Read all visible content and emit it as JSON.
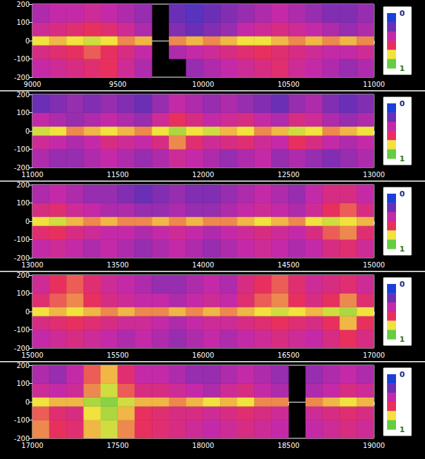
{
  "chart_data": [
    {
      "type": "heatmap",
      "xlim": [
        9000,
        11000
      ],
      "xticks": [
        9000,
        9500,
        10000,
        10500,
        11000
      ],
      "ylim": [
        -200,
        200
      ],
      "yticks": [
        -200,
        -100,
        0,
        100,
        200
      ],
      "x_edges": [
        9000,
        9100,
        9200,
        9300,
        9400,
        9500,
        9600,
        9700,
        9800,
        9900,
        10000,
        10100,
        10200,
        10300,
        10400,
        10500,
        10600,
        10700,
        10800,
        10900,
        11000
      ],
      "y_edges": [
        -200,
        -100,
        -25,
        25,
        100,
        200
      ],
      "cells": [
        [
          0.4,
          0.45,
          0.5,
          0.55,
          0.6,
          0.45,
          0.35,
          null,
          null,
          0.3,
          0.35,
          0.4,
          0.45,
          0.5,
          0.55,
          0.45,
          0.4,
          0.35,
          0.3,
          0.35
        ],
        [
          0.5,
          0.55,
          0.6,
          0.65,
          0.6,
          0.5,
          0.4,
          null,
          0.35,
          0.4,
          0.45,
          0.5,
          0.55,
          0.6,
          0.55,
          0.5,
          0.45,
          0.4,
          0.4,
          0.45
        ],
        [
          0.8,
          0.75,
          0.8,
          0.85,
          0.8,
          0.7,
          0.75,
          null,
          0.7,
          0.75,
          0.7,
          0.75,
          0.8,
          0.8,
          0.75,
          0.7,
          0.75,
          0.7,
          0.75,
          0.7
        ],
        [
          0.45,
          0.5,
          0.55,
          0.6,
          0.55,
          0.45,
          0.35,
          null,
          0.25,
          0.2,
          0.25,
          0.3,
          0.4,
          0.45,
          0.5,
          0.45,
          0.4,
          0.35,
          0.3,
          0.35
        ],
        [
          0.35,
          0.4,
          0.4,
          0.45,
          0.4,
          0.35,
          0.3,
          null,
          0.2,
          0.15,
          0.2,
          0.25,
          0.3,
          0.35,
          0.4,
          0.35,
          0.3,
          0.25,
          0.25,
          0.3
        ]
      ],
      "colorbar": {
        "range": [
          0,
          1
        ],
        "ticks": [
          0,
          1
        ],
        "colors": [
          "#1c3fd8",
          "#6a2fb5",
          "#c42aa8",
          "#e8305e",
          "#f2e23e",
          "#66cc44"
        ]
      }
    },
    {
      "type": "heatmap",
      "xlim": [
        11000,
        13000
      ],
      "xticks": [
        11000,
        11500,
        12000,
        12500,
        13000
      ],
      "ylim": [
        -200,
        200
      ],
      "yticks": [
        -200,
        -100,
        0,
        100,
        200
      ],
      "x_edges": [
        11000,
        11100,
        11200,
        11300,
        11400,
        11500,
        11600,
        11700,
        11800,
        11900,
        12000,
        12100,
        12200,
        12300,
        12400,
        12500,
        12600,
        12700,
        12800,
        12900,
        13000
      ],
      "y_edges": [
        -200,
        -100,
        -25,
        25,
        100,
        200
      ],
      "cells": [
        [
          0.35,
          0.3,
          0.3,
          0.35,
          0.4,
          0.35,
          0.3,
          0.35,
          0.45,
          0.4,
          0.35,
          0.3,
          0.35,
          0.4,
          0.3,
          0.35,
          0.3,
          0.25,
          0.3,
          0.35
        ],
        [
          0.45,
          0.4,
          0.35,
          0.4,
          0.5,
          0.45,
          0.4,
          0.5,
          0.7,
          0.55,
          0.45,
          0.5,
          0.55,
          0.45,
          0.4,
          0.6,
          0.5,
          0.4,
          0.35,
          0.4
        ],
        [
          0.85,
          0.8,
          0.7,
          0.75,
          0.8,
          0.75,
          0.7,
          0.8,
          0.9,
          0.8,
          0.85,
          0.75,
          0.8,
          0.7,
          0.75,
          0.85,
          0.8,
          0.7,
          0.75,
          0.8
        ],
        [
          0.4,
          0.35,
          0.3,
          0.35,
          0.4,
          0.35,
          0.3,
          0.45,
          0.6,
          0.5,
          0.4,
          0.45,
          0.5,
          0.4,
          0.35,
          0.5,
          0.45,
          0.35,
          0.3,
          0.35
        ],
        [
          0.2,
          0.25,
          0.3,
          0.25,
          0.3,
          0.25,
          0.2,
          0.3,
          0.4,
          0.35,
          0.3,
          0.35,
          0.3,
          0.25,
          0.2,
          0.3,
          0.35,
          0.25,
          0.2,
          0.25
        ]
      ],
      "colorbar": {
        "range": [
          0,
          1
        ],
        "ticks": [
          0,
          1
        ],
        "colors": [
          "#1c3fd8",
          "#6a2fb5",
          "#c42aa8",
          "#e8305e",
          "#f2e23e",
          "#66cc44"
        ]
      }
    },
    {
      "type": "heatmap",
      "xlim": [
        13000,
        15000
      ],
      "xticks": [
        13000,
        13500,
        14000,
        14500,
        15000
      ],
      "ylim": [
        -200,
        200
      ],
      "yticks": [
        -200,
        -100,
        0,
        100,
        200
      ],
      "x_edges": [
        13000,
        13100,
        13200,
        13300,
        13400,
        13500,
        13600,
        13700,
        13800,
        13900,
        14000,
        14100,
        14200,
        14300,
        14400,
        14500,
        14600,
        14700,
        14800,
        14900,
        15000
      ],
      "y_edges": [
        -200,
        -100,
        -25,
        25,
        100,
        200
      ],
      "cells": [
        [
          0.4,
          0.45,
          0.4,
          0.35,
          0.4,
          0.35,
          0.3,
          0.35,
          0.4,
          0.35,
          0.3,
          0.35,
          0.4,
          0.45,
          0.4,
          0.35,
          0.4,
          0.5,
          0.55,
          0.45
        ],
        [
          0.55,
          0.6,
          0.5,
          0.45,
          0.4,
          0.4,
          0.35,
          0.4,
          0.45,
          0.4,
          0.35,
          0.4,
          0.45,
          0.5,
          0.45,
          0.4,
          0.5,
          0.65,
          0.7,
          0.55
        ],
        [
          0.8,
          0.85,
          0.75,
          0.7,
          0.75,
          0.7,
          0.7,
          0.75,
          0.7,
          0.75,
          0.7,
          0.7,
          0.75,
          0.8,
          0.75,
          0.7,
          0.8,
          0.85,
          0.8,
          0.75
        ],
        [
          0.5,
          0.55,
          0.45,
          0.4,
          0.35,
          0.35,
          0.3,
          0.3,
          0.35,
          0.3,
          0.3,
          0.35,
          0.4,
          0.45,
          0.4,
          0.35,
          0.45,
          0.6,
          0.65,
          0.5
        ],
        [
          0.35,
          0.4,
          0.35,
          0.3,
          0.3,
          0.25,
          0.2,
          0.25,
          0.3,
          0.25,
          0.25,
          0.3,
          0.35,
          0.4,
          0.35,
          0.3,
          0.4,
          0.5,
          0.5,
          0.4
        ]
      ],
      "colorbar": {
        "range": [
          0,
          1
        ],
        "ticks": [
          0,
          1
        ],
        "colors": [
          "#1c3fd8",
          "#6a2fb5",
          "#c42aa8",
          "#e8305e",
          "#f2e23e",
          "#66cc44"
        ]
      }
    },
    {
      "type": "heatmap",
      "xlim": [
        15000,
        17000
      ],
      "xticks": [
        15000,
        15500,
        16000,
        16500,
        17000
      ],
      "ylim": [
        -200,
        200
      ],
      "yticks": [
        -200,
        -100,
        0,
        100,
        200
      ],
      "x_edges": [
        15000,
        15100,
        15200,
        15300,
        15400,
        15500,
        15600,
        15700,
        15800,
        15900,
        16000,
        16100,
        16200,
        16300,
        16400,
        16500,
        16600,
        16700,
        16800,
        16900,
        17000
      ],
      "y_edges": [
        -200,
        -100,
        -25,
        25,
        100,
        200
      ],
      "cells": [
        [
          0.4,
          0.45,
          0.5,
          0.45,
          0.4,
          0.35,
          0.4,
          0.35,
          0.3,
          0.35,
          0.4,
          0.35,
          0.4,
          0.45,
          0.5,
          0.45,
          0.4,
          0.5,
          0.6,
          0.5
        ],
        [
          0.5,
          0.55,
          0.6,
          0.55,
          0.5,
          0.45,
          0.45,
          0.4,
          0.35,
          0.4,
          0.45,
          0.45,
          0.5,
          0.55,
          0.6,
          0.55,
          0.5,
          0.6,
          0.75,
          0.6
        ],
        [
          0.8,
          0.75,
          0.8,
          0.75,
          0.7,
          0.75,
          0.7,
          0.7,
          0.75,
          0.7,
          0.75,
          0.7,
          0.75,
          0.8,
          0.85,
          0.8,
          0.75,
          0.85,
          0.9,
          0.8
        ],
        [
          0.55,
          0.65,
          0.7,
          0.6,
          0.5,
          0.45,
          0.4,
          0.4,
          0.35,
          0.4,
          0.45,
          0.4,
          0.55,
          0.65,
          0.7,
          0.6,
          0.5,
          0.6,
          0.7,
          0.55
        ],
        [
          0.45,
          0.6,
          0.65,
          0.55,
          0.45,
          0.4,
          0.35,
          0.3,
          0.3,
          0.35,
          0.4,
          0.35,
          0.5,
          0.6,
          0.65,
          0.55,
          0.45,
          0.5,
          0.55,
          0.45
        ]
      ],
      "colorbar": {
        "range": [
          0,
          1
        ],
        "ticks": [
          0,
          1
        ],
        "colors": [
          "#1c3fd8",
          "#6a2fb5",
          "#c42aa8",
          "#e8305e",
          "#f2e23e",
          "#66cc44"
        ]
      }
    },
    {
      "type": "heatmap",
      "xlim": [
        17000,
        19000
      ],
      "xticks": [
        17000,
        17500,
        18000,
        18500,
        19000
      ],
      "ylim": [
        -200,
        200
      ],
      "yticks": [
        -200,
        -100,
        0,
        100,
        200
      ],
      "x_edges": [
        17000,
        17100,
        17200,
        17300,
        17400,
        17500,
        17600,
        17700,
        17800,
        17900,
        18000,
        18100,
        18200,
        18300,
        18400,
        18500,
        18600,
        18700,
        18800,
        18900,
        19000
      ],
      "y_edges": [
        -200,
        -100,
        -25,
        25,
        100,
        200
      ],
      "cells": [
        [
          0.7,
          0.6,
          0.55,
          0.75,
          0.85,
          0.7,
          0.6,
          0.55,
          0.5,
          0.45,
          0.4,
          0.45,
          0.5,
          0.45,
          0.4,
          null,
          0.4,
          0.45,
          0.5,
          0.45
        ],
        [
          0.65,
          0.55,
          0.5,
          0.8,
          0.9,
          0.75,
          0.6,
          0.55,
          0.5,
          0.5,
          0.45,
          0.5,
          0.55,
          0.5,
          0.45,
          null,
          0.45,
          0.5,
          0.55,
          0.5
        ],
        [
          0.8,
          0.75,
          0.75,
          0.9,
          0.95,
          0.85,
          0.75,
          0.75,
          0.7,
          0.75,
          0.8,
          0.75,
          0.8,
          0.7,
          0.7,
          null,
          0.7,
          0.75,
          0.8,
          0.75
        ],
        [
          0.45,
          0.4,
          0.45,
          0.7,
          0.85,
          0.65,
          0.5,
          0.5,
          0.45,
          0.4,
          0.35,
          0.45,
          0.5,
          0.4,
          0.35,
          null,
          0.35,
          0.4,
          0.5,
          0.45
        ],
        [
          0.35,
          0.3,
          0.4,
          0.65,
          0.75,
          0.55,
          0.4,
          0.4,
          0.35,
          0.3,
          0.3,
          0.35,
          0.4,
          0.35,
          0.3,
          null,
          0.3,
          0.35,
          0.4,
          0.35
        ]
      ],
      "colorbar": {
        "range": [
          0,
          1
        ],
        "ticks": [
          0,
          1
        ],
        "colors": [
          "#1c3fd8",
          "#6a2fb5",
          "#c42aa8",
          "#e8305e",
          "#f2e23e",
          "#66cc44"
        ]
      }
    }
  ]
}
